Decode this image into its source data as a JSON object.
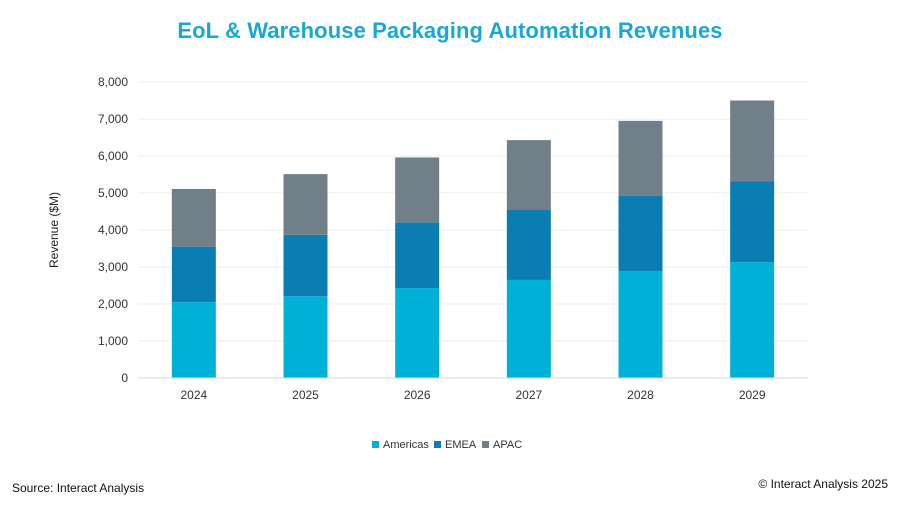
{
  "chart_data": {
    "type": "bar",
    "stacked": true,
    "title": "EoL & Warehouse Packaging Automation Revenues",
    "xlabel": "",
    "ylabel": "Revenue ($M)",
    "categories": [
      "2024",
      "2025",
      "2026",
      "2027",
      "2028",
      "2029"
    ],
    "series": [
      {
        "name": "Americas",
        "color": "#00b0d6",
        "values": [
          2050,
          2210,
          2430,
          2650,
          2890,
          3130
        ]
      },
      {
        "name": "EMEA",
        "color": "#0a7db3",
        "values": [
          1500,
          1660,
          1770,
          1890,
          2030,
          2180
        ]
      },
      {
        "name": "APAC",
        "color": "#717f88",
        "values": [
          1560,
          1640,
          1760,
          1890,
          2030,
          2190
        ]
      }
    ],
    "ylim": [
      0,
      8000
    ],
    "yticks": [
      0,
      1000,
      2000,
      3000,
      4000,
      5000,
      6000,
      7000,
      8000
    ],
    "ytick_labels": [
      "0",
      "1,000",
      "2,000",
      "3,000",
      "4,000",
      "5,000",
      "6,000",
      "7,000",
      "8,000"
    ],
    "grid": true,
    "legend_position": "bottom"
  },
  "footer": {
    "source": "Source: Interact Analysis",
    "copyright": "© Interact Analysis 2025"
  }
}
